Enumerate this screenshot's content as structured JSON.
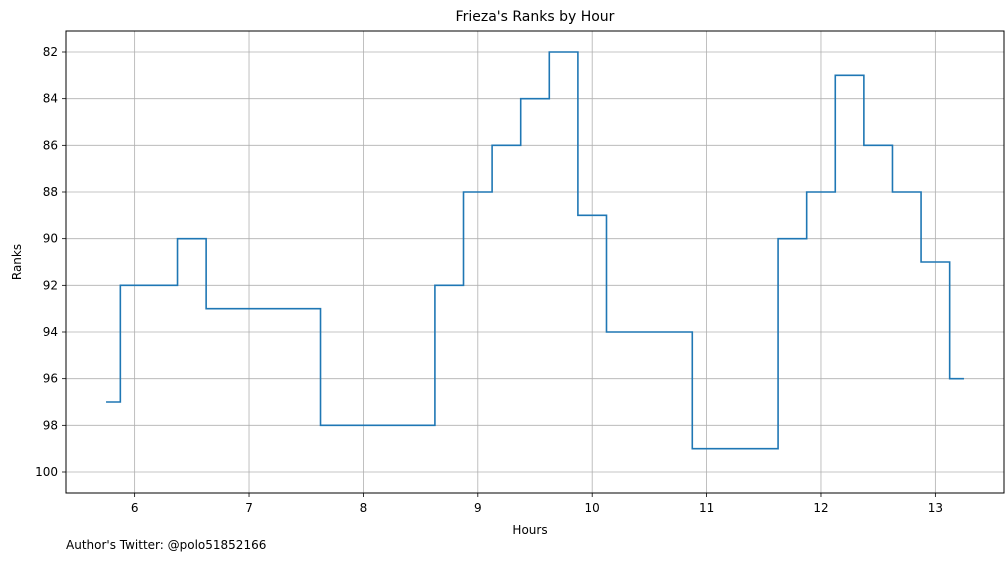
{
  "footer": {
    "note": "Author's Twitter: @polo51852166"
  },
  "chart_data": {
    "type": "line",
    "subtype": "step-mid",
    "title": "Frieza's Ranks by Hour",
    "xlabel": "Hours",
    "ylabel": "Ranks",
    "xlim": [
      5.4,
      13.6
    ],
    "ylim": [
      100.9,
      81.1
    ],
    "y_inverted": true,
    "x_ticks": [
      6,
      7,
      8,
      9,
      10,
      11,
      12,
      13
    ],
    "y_ticks": [
      82,
      84,
      86,
      88,
      90,
      92,
      94,
      96,
      98,
      100
    ],
    "grid": true,
    "color": "#1f77b4",
    "series": [
      {
        "x": [
          5.75,
          6.0,
          6.25,
          6.5,
          6.75,
          7.0,
          7.25,
          7.5,
          7.75,
          8.0,
          8.25,
          8.5,
          8.75,
          9.0,
          9.25,
          9.5,
          9.75,
          10.0,
          10.25,
          10.5,
          10.75,
          11.0,
          11.25,
          11.5,
          11.75,
          12.0,
          12.25,
          12.5,
          12.75,
          13.0,
          13.25
        ],
        "y": [
          97,
          92,
          92,
          90,
          93,
          93,
          93,
          93,
          98,
          98,
          98,
          98,
          92,
          88,
          86,
          84,
          82,
          89,
          94,
          94,
          94,
          99,
          99,
          99,
          90,
          88,
          83,
          86,
          88,
          91,
          96
        ]
      }
    ]
  }
}
